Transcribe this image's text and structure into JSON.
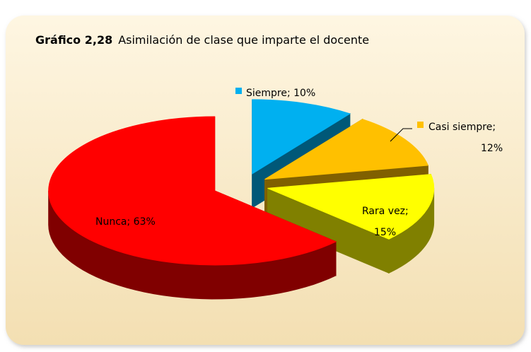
{
  "chart_data": {
    "type": "pie",
    "figure_label": "Gráfico 2,28",
    "title": "Asimilación de clase que imparte el docente",
    "categories": [
      "Siempre",
      "Casi siempre",
      "Rara vez",
      "Nunca"
    ],
    "values": [
      10,
      12,
      15,
      63
    ],
    "value_labels": [
      "Siempre; 10%",
      "Casi siempre; 12%",
      "Rara vez; 15%",
      "Nunca; 63%"
    ],
    "colors": [
      "#00b0f0",
      "#ffc000",
      "#ffff00",
      "#ff0000"
    ]
  }
}
